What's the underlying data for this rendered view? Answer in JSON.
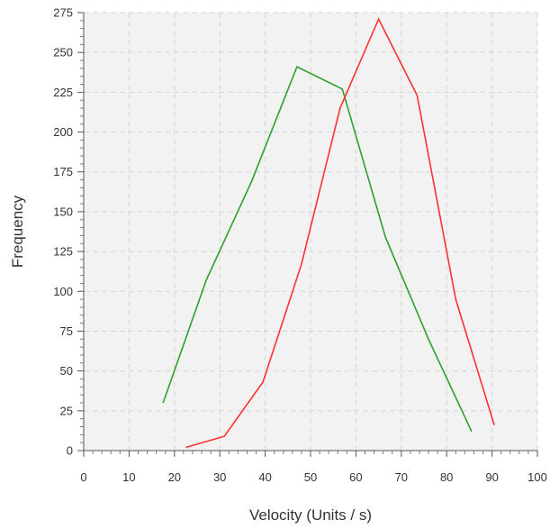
{
  "chart_data": {
    "type": "line",
    "title": "",
    "xlabel": "Velocity (Units / s)",
    "ylabel": "Frequency",
    "xlim": [
      0,
      100
    ],
    "ylim": [
      0,
      275
    ],
    "x_ticks": [
      "0",
      "10",
      "20",
      "30",
      "40",
      "50",
      "60",
      "70",
      "80",
      "90",
      "100"
    ],
    "y_ticks": [
      "0",
      "25",
      "50",
      "75",
      "100",
      "125",
      "150",
      "175",
      "200",
      "225",
      "250",
      "275"
    ],
    "grid": true,
    "legend": "none",
    "series": [
      {
        "color": "#2ca02c",
        "x": [
          17.5,
          27,
          37,
          47,
          57,
          66.5,
          76,
          85.5
        ],
        "y": [
          30,
          107,
          169,
          241,
          227,
          134,
          70,
          12
        ]
      },
      {
        "color": "#ff3030",
        "x": [
          22.5,
          31,
          39.5,
          48,
          56.5,
          65,
          73.5,
          82,
          90.5
        ],
        "y": [
          2,
          9,
          43,
          117,
          215,
          271,
          223,
          95,
          16
        ]
      }
    ]
  }
}
